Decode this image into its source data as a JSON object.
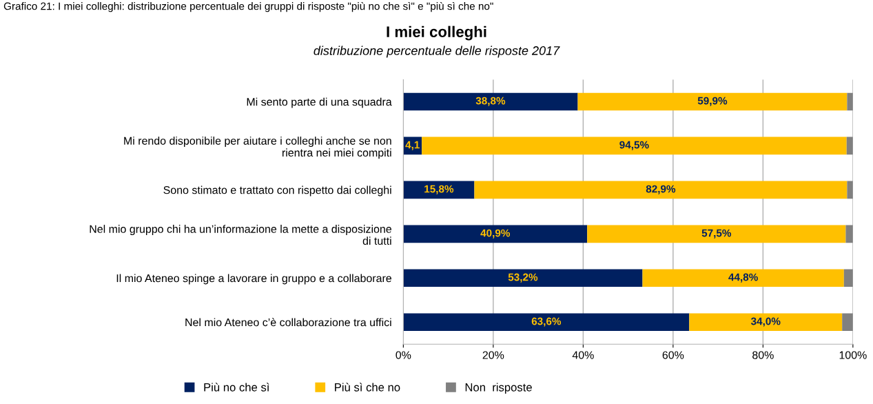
{
  "chart_data": {
    "type": "bar",
    "orientation": "horizontal",
    "stacked": true,
    "title": "I miei colleghi",
    "subtitle": "distribuzione percentuale delle risposte 2017",
    "annotations": [
      "Grafico 21: I miei colleghi: distribuzione percentuale dei gruppi di risposte \"più no che sì\" e \"più sì che no\""
    ],
    "categories": [
      "Mi sento parte di una squadra",
      "Mi rendo disponibile per aiutare i colleghi anche se non rientra nei miei compiti",
      "Sono stimato e trattato con rispetto dai colleghi",
      "Nel mio gruppo chi ha un’informazione la mette a disposizione di tutti",
      "Il mio Ateneo spinge a lavorare in gruppo e a collaborare",
      "Nel mio Ateneo c’è collaborazione tra uffici"
    ],
    "series": [
      {
        "name": "Più no che sì",
        "color": "#002060",
        "values": [
          38.8,
          4.1,
          15.8,
          40.9,
          53.2,
          63.6
        ],
        "value_labels": [
          "38,8%",
          "4,1",
          "15,8%",
          "40,9%",
          "53,2%",
          "63,6%"
        ]
      },
      {
        "name": "Più sì che no",
        "color": "#ffc000",
        "values": [
          59.9,
          94.5,
          82.9,
          57.5,
          44.8,
          34.0
        ],
        "value_labels": [
          "59,9%",
          "94,5%",
          "82,9%",
          "57,5%",
          "44,8%",
          "34,0%"
        ]
      },
      {
        "name": "Non  risposte",
        "color": "#808080",
        "values": [
          1.3,
          1.4,
          1.3,
          1.6,
          2.0,
          2.4
        ]
      }
    ],
    "xlim": [
      0,
      100
    ],
    "xticks": [
      {
        "value": 0,
        "label": "0%"
      },
      {
        "value": 20,
        "label": "20%"
      },
      {
        "value": 40,
        "label": "40%"
      },
      {
        "value": 60,
        "label": "60%"
      },
      {
        "value": 80,
        "label": "80%"
      },
      {
        "value": 100,
        "label": "100%"
      }
    ],
    "grid": "x",
    "legend": "bottom"
  }
}
